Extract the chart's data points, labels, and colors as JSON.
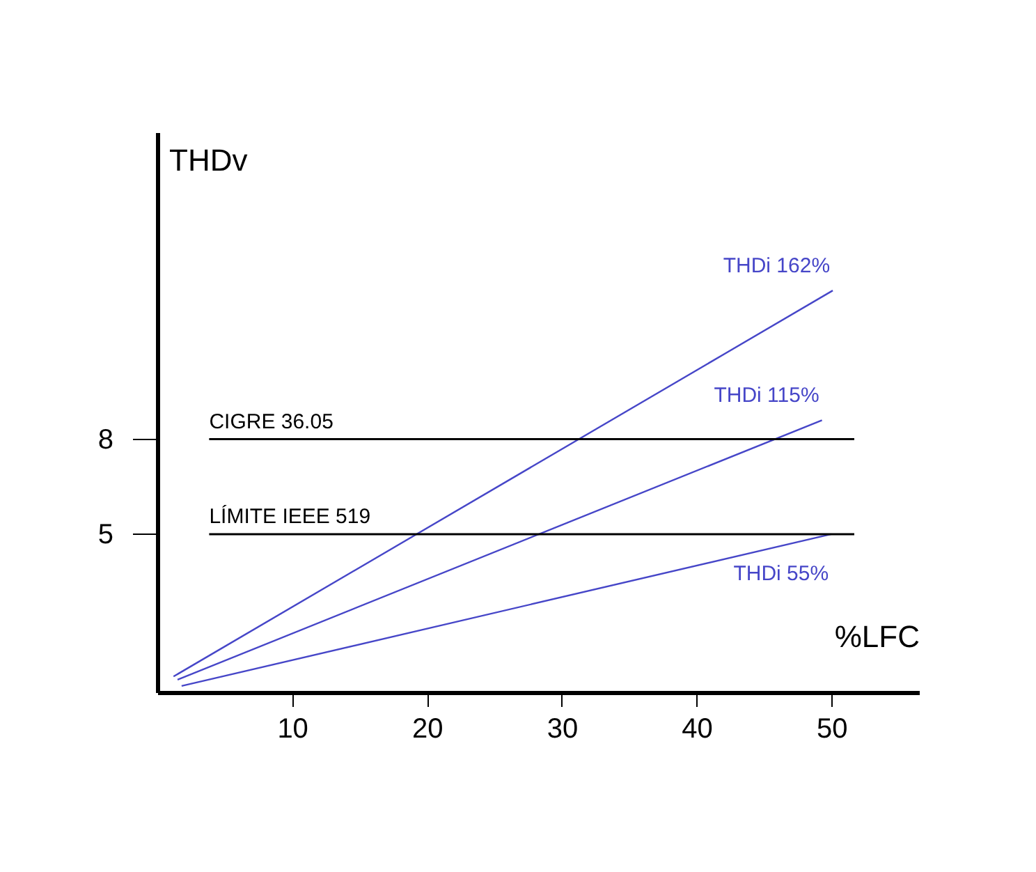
{
  "chart_data": {
    "type": "line",
    "xlabel": "%LFC",
    "ylabel": "THDv",
    "xlim": [
      0,
      56.5
    ],
    "ylim": [
      0,
      17.7
    ],
    "xticks": [
      10,
      20,
      30,
      40,
      50
    ],
    "yticks": [
      5,
      8
    ],
    "grid": false,
    "marker": "none",
    "line_style": "solid",
    "series": [
      {
        "name": "THDi 162%",
        "color": "#4646c8",
        "x": [
          1.2,
          50.1
        ],
        "values": [
          0.5,
          12.7
        ]
      },
      {
        "name": "THDi 115%",
        "color": "#4646c8",
        "x": [
          1.5,
          49.3
        ],
        "values": [
          0.4,
          8.6
        ]
      },
      {
        "name": "THDi 55%",
        "color": "#4646c8",
        "x": [
          1.8,
          50
        ],
        "values": [
          0.2,
          5.0
        ]
      }
    ],
    "ref_lines": [
      {
        "axis": "y",
        "value": 8,
        "label": "CIGRE 36.05",
        "color": "#000000",
        "line_style": "solid"
      },
      {
        "axis": "y",
        "value": 5,
        "label": "LÍMITE IEEE 519",
        "color": "#000000",
        "line_style": "solid"
      }
    ]
  }
}
